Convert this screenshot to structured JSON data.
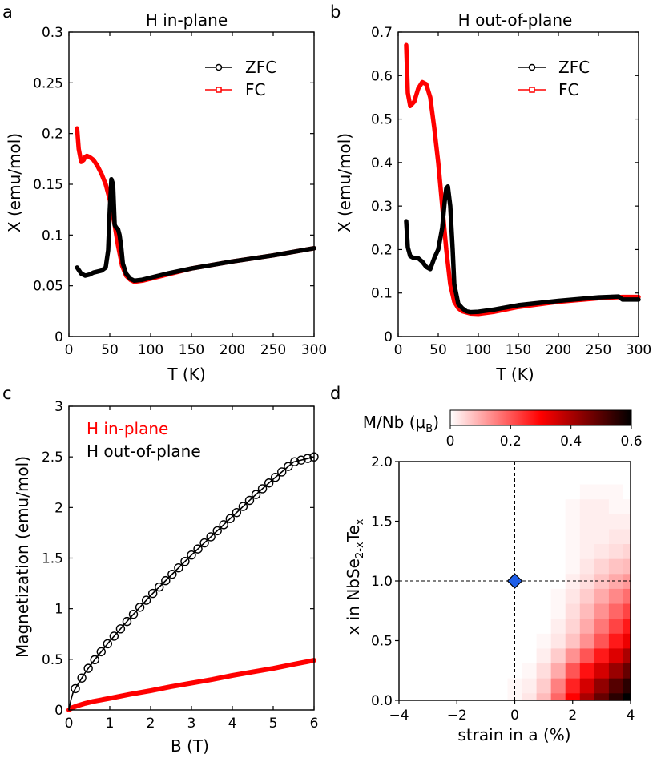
{
  "chart_data": [
    {
      "panel": "a",
      "type": "line",
      "title": "H in-plane",
      "xlabel": "T (K)",
      "ylabel": "X (emu/mol)",
      "xlim": [
        0,
        300
      ],
      "ylim": [
        0,
        0.3
      ],
      "xticks": [
        "0",
        "50",
        "100",
        "150",
        "200",
        "250",
        "300"
      ],
      "yticks": [
        "0",
        "0.05",
        "0.1",
        "0.15",
        "0.2",
        "0.25",
        "0.3"
      ],
      "legend_position": "top-right",
      "series": [
        {
          "name": "ZFC",
          "color": "#000000",
          "x": [
            10,
            15,
            20,
            25,
            30,
            35,
            40,
            45,
            48,
            50,
            52,
            54,
            56,
            58,
            60,
            62,
            64,
            66,
            70,
            75,
            80,
            90,
            100,
            120,
            150,
            200,
            250,
            300
          ],
          "y": [
            0.068,
            0.062,
            0.06,
            0.061,
            0.063,
            0.064,
            0.065,
            0.068,
            0.085,
            0.125,
            0.155,
            0.15,
            0.11,
            0.107,
            0.106,
            0.1,
            0.088,
            0.072,
            0.062,
            0.057,
            0.055,
            0.056,
            0.058,
            0.062,
            0.067,
            0.074,
            0.08,
            0.087
          ]
        },
        {
          "name": "FC",
          "color": "#ff0000",
          "x": [
            10,
            12,
            15,
            18,
            20,
            22,
            25,
            30,
            35,
            40,
            45,
            50,
            55,
            60,
            65,
            70,
            75,
            80,
            90,
            100,
            120,
            150,
            200,
            250,
            300
          ],
          "y": [
            0.205,
            0.185,
            0.172,
            0.174,
            0.177,
            0.178,
            0.177,
            0.174,
            0.168,
            0.16,
            0.15,
            0.135,
            0.115,
            0.09,
            0.07,
            0.06,
            0.056,
            0.054,
            0.055,
            0.057,
            0.061,
            0.067,
            0.074,
            0.08,
            0.087
          ]
        }
      ]
    },
    {
      "panel": "b",
      "type": "line",
      "title": "H out-of-plane",
      "xlabel": "T (K)",
      "ylabel": "X (emu/mol)",
      "xlim": [
        0,
        300
      ],
      "ylim": [
        0,
        0.7
      ],
      "xticks": [
        "0",
        "50",
        "100",
        "150",
        "200",
        "250",
        "300"
      ],
      "yticks": [
        "0",
        "0.1",
        "0.2",
        "0.3",
        "0.4",
        "0.5",
        "0.6",
        "0.7"
      ],
      "legend_position": "top-right",
      "series": [
        {
          "name": "ZFC",
          "color": "#000000",
          "x": [
            10,
            12,
            15,
            20,
            25,
            30,
            35,
            40,
            45,
            50,
            55,
            58,
            60,
            62,
            65,
            68,
            70,
            75,
            80,
            85,
            90,
            100,
            120,
            150,
            200,
            250,
            275,
            280,
            300
          ],
          "y": [
            0.265,
            0.205,
            0.185,
            0.18,
            0.18,
            0.172,
            0.16,
            0.155,
            0.18,
            0.2,
            0.25,
            0.31,
            0.34,
            0.345,
            0.3,
            0.2,
            0.12,
            0.075,
            0.065,
            0.058,
            0.056,
            0.057,
            0.062,
            0.072,
            0.082,
            0.09,
            0.092,
            0.085,
            0.085
          ]
        },
        {
          "name": "FC",
          "color": "#ff0000",
          "x": [
            10,
            12,
            15,
            20,
            25,
            30,
            35,
            40,
            45,
            50,
            55,
            60,
            65,
            70,
            75,
            80,
            90,
            100,
            120,
            150,
            200,
            250,
            280,
            300
          ],
          "y": [
            0.67,
            0.56,
            0.53,
            0.54,
            0.57,
            0.585,
            0.58,
            0.55,
            0.48,
            0.4,
            0.3,
            0.2,
            0.12,
            0.08,
            0.065,
            0.058,
            0.053,
            0.052,
            0.057,
            0.068,
            0.08,
            0.088,
            0.091,
            0.091
          ]
        }
      ]
    },
    {
      "panel": "c",
      "type": "line",
      "xlabel": "B (T)",
      "ylabel": "Magnetization (emu/mol)",
      "xlim": [
        0,
        6
      ],
      "ylim": [
        0,
        3
      ],
      "xticks": [
        "0",
        "1",
        "2",
        "3",
        "4",
        "5",
        "6"
      ],
      "yticks": [
        "0",
        "0.5",
        "1",
        "1.5",
        "2",
        "2.5",
        "3"
      ],
      "legend_position": "top-left",
      "series": [
        {
          "name": "H in-plane",
          "color": "#ff0000",
          "x": [
            0,
            0.05,
            0.1,
            0.2,
            0.4,
            0.6,
            0.8,
            1,
            1.5,
            2,
            2.5,
            3,
            3.5,
            4,
            4.5,
            5,
            5.5,
            6
          ],
          "y": [
            0,
            0.015,
            0.025,
            0.04,
            0.065,
            0.085,
            0.1,
            0.115,
            0.155,
            0.19,
            0.23,
            0.265,
            0.3,
            0.34,
            0.375,
            0.41,
            0.45,
            0.49
          ]
        },
        {
          "name": "H out-of-plane",
          "color": "#000000",
          "x": [
            0,
            0.05,
            0.1,
            0.2,
            0.4,
            0.6,
            0.8,
            1,
            1.5,
            2,
            2.5,
            3,
            3.5,
            4,
            4.5,
            5,
            5.5,
            6
          ],
          "y": [
            0,
            0.1,
            0.17,
            0.24,
            0.37,
            0.48,
            0.58,
            0.68,
            0.91,
            1.13,
            1.33,
            1.53,
            1.72,
            1.91,
            2.1,
            2.28,
            2.45,
            2.5
          ]
        }
      ]
    },
    {
      "panel": "d",
      "type": "heatmap",
      "xlabel": "strain in a (%)",
      "ylabel_parts": [
        "x in NbSe",
        "2-x",
        "Te",
        "x"
      ],
      "xlim": [
        -4,
        4
      ],
      "ylim": [
        0,
        2
      ],
      "xticks": [
        "−4",
        "−2",
        "0",
        "2",
        "4"
      ],
      "yticks": [
        "0.0",
        "0.5",
        "1.0",
        "1.5",
        "2.0"
      ],
      "colorbar": {
        "label_parts": [
          "M/Nb (μ",
          "B",
          ")"
        ],
        "range": [
          0,
          0.6
        ],
        "ticks": [
          "0",
          "0.2",
          "0.4",
          "0.6"
        ],
        "colormap": "white-red-black"
      },
      "marker": {
        "x": 0,
        "y": 1.0,
        "shape": "diamond",
        "color": "#1f5fe8"
      },
      "guides": {
        "vertical_x": 0,
        "horizontal_y": 1.0
      },
      "grid": {
        "x": [
          -4,
          -3.5,
          -3,
          -2.5,
          -2,
          -1.5,
          -1,
          -0.5,
          0,
          0.5,
          1,
          1.5,
          2,
          2.5,
          3,
          3.5,
          4
        ],
        "y": [
          0,
          0.125,
          0.25,
          0.375,
          0.5,
          0.625,
          0.75,
          0.875,
          1.0,
          1.125,
          1.25,
          1.375,
          1.5,
          1.625,
          1.75,
          1.875,
          2.0
        ],
        "z": [
          [
            0,
            0,
            0,
            0,
            0,
            0,
            0,
            0,
            0.01,
            0.03,
            0.08,
            0.18,
            0.3,
            0.4,
            0.48,
            0.55,
            0.6
          ],
          [
            0,
            0,
            0,
            0,
            0,
            0,
            0,
            0,
            0.01,
            0.02,
            0.06,
            0.15,
            0.26,
            0.35,
            0.43,
            0.5,
            0.55
          ],
          [
            0,
            0,
            0,
            0,
            0,
            0,
            0,
            0,
            0,
            0.01,
            0.04,
            0.1,
            0.2,
            0.28,
            0.35,
            0.42,
            0.48
          ],
          [
            0,
            0,
            0,
            0,
            0,
            0,
            0,
            0,
            0,
            0,
            0.02,
            0.06,
            0.13,
            0.2,
            0.27,
            0.34,
            0.4
          ],
          [
            0,
            0,
            0,
            0,
            0,
            0,
            0,
            0,
            0,
            0,
            0.01,
            0.03,
            0.07,
            0.13,
            0.2,
            0.27,
            0.32
          ],
          [
            0,
            0,
            0,
            0,
            0,
            0,
            0,
            0,
            0,
            0,
            0,
            0.02,
            0.05,
            0.1,
            0.16,
            0.22,
            0.27
          ],
          [
            0,
            0,
            0,
            0,
            0,
            0,
            0,
            0,
            0,
            0,
            0,
            0.01,
            0.04,
            0.08,
            0.13,
            0.18,
            0.22
          ],
          [
            0,
            0,
            0,
            0,
            0,
            0,
            0,
            0,
            0,
            0,
            0,
            0.01,
            0.03,
            0.06,
            0.1,
            0.14,
            0.17
          ],
          [
            0,
            0,
            0,
            0,
            0,
            0,
            0,
            0,
            0,
            0,
            0,
            0,
            0.02,
            0.04,
            0.07,
            0.1,
            0.12
          ],
          [
            0,
            0,
            0,
            0,
            0,
            0,
            0,
            0,
            0,
            0,
            0,
            0,
            0.01,
            0.03,
            0.05,
            0.07,
            0.08
          ],
          [
            0,
            0,
            0,
            0,
            0,
            0,
            0,
            0,
            0,
            0,
            0,
            0,
            0.01,
            0.02,
            0.03,
            0.04,
            0.05
          ],
          [
            0,
            0,
            0,
            0,
            0,
            0,
            0,
            0,
            0,
            0,
            0,
            0,
            0.01,
            0.02,
            0.02,
            0.03,
            0.03
          ],
          [
            0,
            0,
            0,
            0,
            0,
            0,
            0,
            0,
            0,
            0,
            0,
            0,
            0.01,
            0.02,
            0.02,
            0.02,
            0.02
          ],
          [
            0,
            0,
            0,
            0,
            0,
            0,
            0,
            0,
            0,
            0,
            0,
            0,
            0.01,
            0.02,
            0.02,
            0.01,
            0.01
          ],
          [
            0,
            0,
            0,
            0,
            0,
            0,
            0,
            0,
            0,
            0,
            0,
            0,
            0,
            0.01,
            0.01,
            0.01,
            0
          ],
          [
            0,
            0,
            0,
            0,
            0,
            0,
            0,
            0,
            0,
            0,
            0,
            0,
            0,
            0,
            0,
            0,
            0
          ],
          [
            0,
            0,
            0,
            0,
            0,
            0,
            0,
            0,
            0,
            0,
            0,
            0,
            0,
            0,
            0,
            0,
            0
          ]
        ]
      }
    }
  ],
  "panel_labels": [
    "a",
    "b",
    "c",
    "d"
  ]
}
